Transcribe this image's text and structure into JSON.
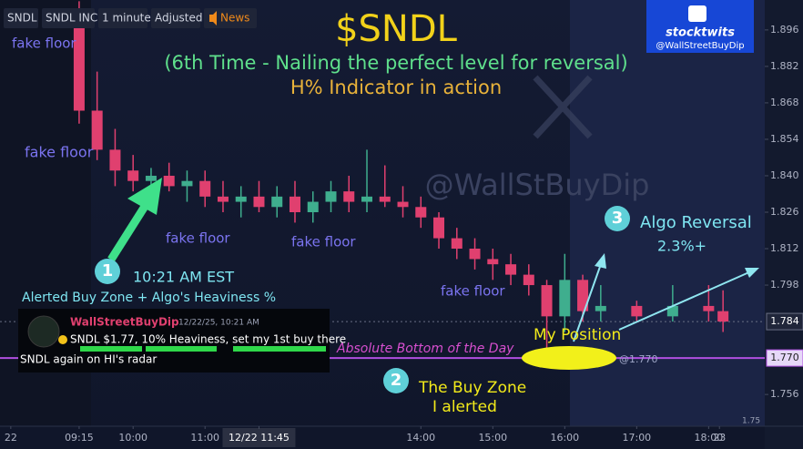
{
  "chart_data": {
    "type": "candlestick",
    "toolbar": [
      "SNDL",
      "SNDL INC",
      "1 minute",
      "Adjusted",
      "News"
    ],
    "title": "$SNDL",
    "subtitle": "(6th Time - Nailing the perfect level for reversal)",
    "subtitle2": "H% Indicator in action",
    "watermark": "@WallStBuyDip",
    "badge": {
      "name": "stocktwits",
      "handle": "@WallStreetBuyDip"
    },
    "x": [
      9.25,
      9.5,
      9.75,
      10,
      10.25,
      10.5,
      10.75,
      11,
      11.25,
      11.5,
      11.75,
      12,
      12.25,
      12.5,
      12.75,
      13,
      13.25,
      13.5,
      13.75,
      14,
      14.25,
      14.5,
      14.75,
      15,
      15.25,
      15.5,
      15.75,
      16,
      16.25,
      16.5,
      17,
      17.5,
      18,
      18.2
    ],
    "open": [
      1.9,
      1.865,
      1.85,
      1.842,
      1.838,
      1.84,
      1.836,
      1.838,
      1.832,
      1.83,
      1.832,
      1.828,
      1.832,
      1.826,
      1.83,
      1.834,
      1.83,
      1.832,
      1.83,
      1.828,
      1.824,
      1.816,
      1.812,
      1.808,
      1.806,
      1.802,
      1.798,
      1.786,
      1.8,
      1.788,
      1.79,
      1.786,
      1.79,
      1.788
    ],
    "high": [
      1.907,
      1.88,
      1.858,
      1.848,
      1.843,
      1.845,
      1.842,
      1.842,
      1.838,
      1.836,
      1.838,
      1.836,
      1.838,
      1.834,
      1.838,
      1.84,
      1.85,
      1.844,
      1.836,
      1.832,
      1.826,
      1.82,
      1.816,
      1.812,
      1.81,
      1.806,
      1.8,
      1.81,
      1.802,
      1.798,
      1.792,
      1.798,
      1.798,
      1.796
    ],
    "low": [
      1.86,
      1.846,
      1.836,
      1.834,
      1.832,
      1.834,
      1.83,
      1.828,
      1.826,
      1.824,
      1.826,
      1.824,
      1.822,
      1.822,
      1.826,
      1.826,
      1.826,
      1.828,
      1.824,
      1.82,
      1.812,
      1.808,
      1.804,
      1.8,
      1.798,
      1.794,
      1.77,
      1.78,
      1.784,
      1.784,
      1.784,
      1.784,
      1.784,
      1.78
    ],
    "close": [
      1.865,
      1.85,
      1.842,
      1.838,
      1.84,
      1.836,
      1.838,
      1.832,
      1.83,
      1.832,
      1.828,
      1.832,
      1.826,
      1.83,
      1.834,
      1.83,
      1.832,
      1.83,
      1.828,
      1.824,
      1.816,
      1.812,
      1.808,
      1.806,
      1.802,
      1.798,
      1.786,
      1.8,
      1.788,
      1.79,
      1.786,
      1.79,
      1.788,
      1.784
    ],
    "up_color": "#3fae8e",
    "down_color": "#e0406f",
    "xlim": [
      8.15,
      18.78
    ],
    "xticks": [
      {
        "value": 8.3,
        "label": "22"
      },
      {
        "value": 9.25,
        "label": "09:15"
      },
      {
        "value": 10,
        "label": "10:00"
      },
      {
        "value": 11,
        "label": "11:00"
      },
      {
        "value": 11.75,
        "label": "12/22 11:45"
      },
      {
        "value": 14,
        "label": "14:00"
      },
      {
        "value": 15,
        "label": "15:00"
      },
      {
        "value": 16,
        "label": "16:00"
      },
      {
        "value": 17,
        "label": "17:00"
      },
      {
        "value": 18,
        "label": "18:00"
      },
      {
        "value": 18.15,
        "label": "23"
      }
    ],
    "ylim": [
      1.7438,
      1.9075
    ],
    "yticks": [
      1.896,
      1.882,
      1.868,
      1.854,
      {
        "value": 1.84,
        "label": "1.840"
      },
      1.826,
      1.812,
      1.798,
      1.756
    ],
    "price_lines": [
      {
        "value": 1.784,
        "label": "1.784",
        "color": "#6a6f85"
      },
      {
        "value": 1.77,
        "label": "1.770",
        "color": "#b04fe0"
      }
    ],
    "annotations": [
      {
        "text": "fake floor",
        "color": "#7b74f0"
      },
      {
        "text": "fake floor",
        "color": "#7b74f0"
      },
      {
        "text": "fake floor",
        "color": "#7b74f0"
      },
      {
        "text": "fake floor",
        "color": "#7b74f0"
      },
      {
        "text": "fake floor",
        "color": "#7b74f0"
      },
      {
        "text": "1",
        "color": "#ffffff"
      },
      {
        "text": "10:21 AM EST",
        "color": "#7fe6f2"
      },
      {
        "text": "Alerted Buy Zone + Algo's Heaviness %",
        "color": "#7fe6f2"
      },
      {
        "text": "Absolute Bottom of the Day",
        "color": "#d84fd0"
      },
      {
        "text": "My Position",
        "color": "#f2ea1a"
      },
      {
        "text": "@1.770",
        "color": "#9fa7c8"
      },
      {
        "text": "2",
        "color": "#ffffff"
      },
      {
        "text": "The Buy Zone",
        "color": "#f2ea1a"
      },
      {
        "text": "I alerted",
        "color": "#f2ea1a"
      },
      {
        "text": "3",
        "color": "#ffffff"
      },
      {
        "text": "Algo Reversal",
        "color": "#7fe6f2"
      },
      {
        "text": "2.3%+",
        "color": "#7fe6f2"
      },
      {
        "text": "1.75",
        "color": "#9aa0b4"
      }
    ],
    "tweet": {
      "author": "WallStreetBuyDip",
      "time": "12/22/25, 10:21 AM",
      "line1": "SNDL $1.77, 10% Heaviness, set my 1st buy there",
      "line2": "SNDL again on HI's radar"
    }
  }
}
